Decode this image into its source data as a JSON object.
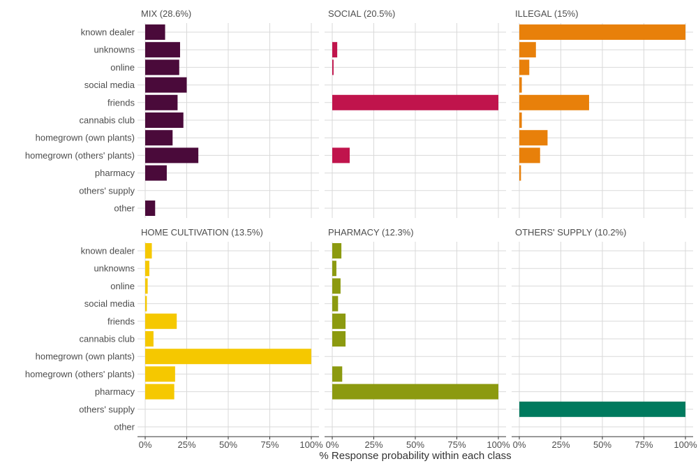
{
  "chart_data": {
    "type": "bar",
    "orientation": "horizontal",
    "xlabel": "% Response probability within each class",
    "xticks": [
      "0%",
      "25%",
      "50%",
      "75%",
      "100%"
    ],
    "xlim": [
      0,
      100
    ],
    "categories": [
      "known dealer",
      "unknowns",
      "online",
      "social media",
      "friends",
      "cannabis club",
      "homegrown (own plants)",
      "homegrown (others' plants)",
      "pharmacy",
      "others' supply",
      "other"
    ],
    "series": [
      {
        "name": "MIX (28.6%)",
        "color": "#4a0a3a",
        "values": [
          12,
          21,
          20.5,
          25,
          19.5,
          23,
          16.5,
          32,
          13,
          0,
          6
        ]
      },
      {
        "name": "SOCIAL (20.5%)",
        "color": "#c0144c",
        "values": [
          0,
          3,
          0.8,
          0,
          100,
          0,
          0,
          10.5,
          0,
          0,
          0
        ]
      },
      {
        "name": "ILLEGAL (15%)",
        "color": "#e8800a",
        "values": [
          100,
          10,
          6,
          1.5,
          42,
          1.5,
          17,
          12.5,
          1,
          0,
          0
        ]
      },
      {
        "name": "HOME CULTIVATION (13.5%)",
        "color": "#f5c800",
        "values": [
          4,
          2.5,
          1.5,
          1,
          19,
          5,
          100,
          18,
          17.5,
          0,
          0
        ]
      },
      {
        "name": "PHARMACY (12.3%)",
        "color": "#8c9a10",
        "values": [
          5.5,
          2.5,
          5,
          3.5,
          8,
          8,
          0,
          6,
          100,
          0,
          0
        ]
      },
      {
        "name": "OTHERS' SUPPLY (10.2%)",
        "color": "#007a5e",
        "values": [
          0,
          0,
          0,
          0,
          0,
          0,
          0,
          0,
          0,
          100,
          0
        ]
      }
    ]
  }
}
